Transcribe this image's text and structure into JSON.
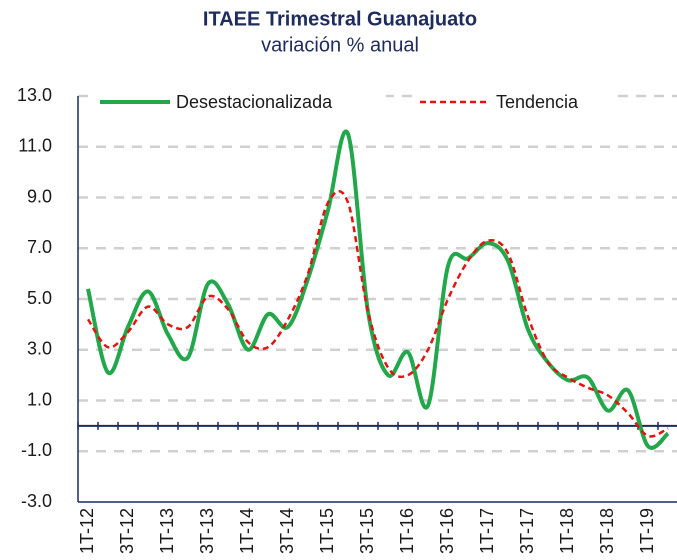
{
  "chart_data": {
    "type": "line",
    "title": "ITAEE Trimestral Guanajuato",
    "subtitle": "variación % anual",
    "categories": [
      "1T-12",
      null,
      "3T-12",
      null,
      "1T-13",
      null,
      "3T-13",
      null,
      "1T-14",
      null,
      "3T-14",
      null,
      "1T-15",
      null,
      "3T-15",
      null,
      "1T-16",
      null,
      "3T-16",
      null,
      "1T-17",
      null,
      "3T-17",
      null,
      "1T-18",
      null,
      "3T-18",
      null,
      "1T-19",
      null
    ],
    "series": [
      {
        "name": "Desestacionalizada",
        "color": "#22a84a",
        "dash": false,
        "values": [
          5.4,
          2.1,
          3.9,
          5.3,
          3.6,
          2.7,
          5.6,
          4.8,
          3.0,
          4.4,
          3.9,
          5.8,
          8.5,
          11.5,
          4.5,
          2.0,
          2.9,
          0.8,
          6.3,
          6.6,
          7.2,
          6.5,
          3.8,
          2.5,
          1.8,
          1.9,
          0.6,
          1.4,
          -0.8,
          -0.3
        ]
      },
      {
        "name": "Tendencia",
        "color": "#e3130f",
        "dash": true,
        "values": [
          4.2,
          3.1,
          3.7,
          4.7,
          4.0,
          3.9,
          5.1,
          4.6,
          3.3,
          3.1,
          4.2,
          6.0,
          8.8,
          8.8,
          4.5,
          2.3,
          2.0,
          3.0,
          5.0,
          6.5,
          7.3,
          6.8,
          4.3,
          2.5,
          1.9,
          1.5,
          1.2,
          0.5,
          -0.4,
          -0.1
        ]
      }
    ],
    "ylim": [
      -3,
      13
    ],
    "yticks": [
      {
        "value": -3,
        "label": "-3.0"
      },
      {
        "value": -1,
        "label": "-1.0"
      },
      {
        "value": 1,
        "label": "1.0"
      },
      {
        "value": 3,
        "label": "3.0"
      },
      {
        "value": 5,
        "label": "5.0"
      },
      {
        "value": 7,
        "label": "7.0"
      },
      {
        "value": 9,
        "label": "9.0"
      },
      {
        "value": 11,
        "label": "11.0"
      },
      {
        "value": 13,
        "label": "13.0"
      }
    ],
    "grid": true,
    "legend": "top"
  }
}
